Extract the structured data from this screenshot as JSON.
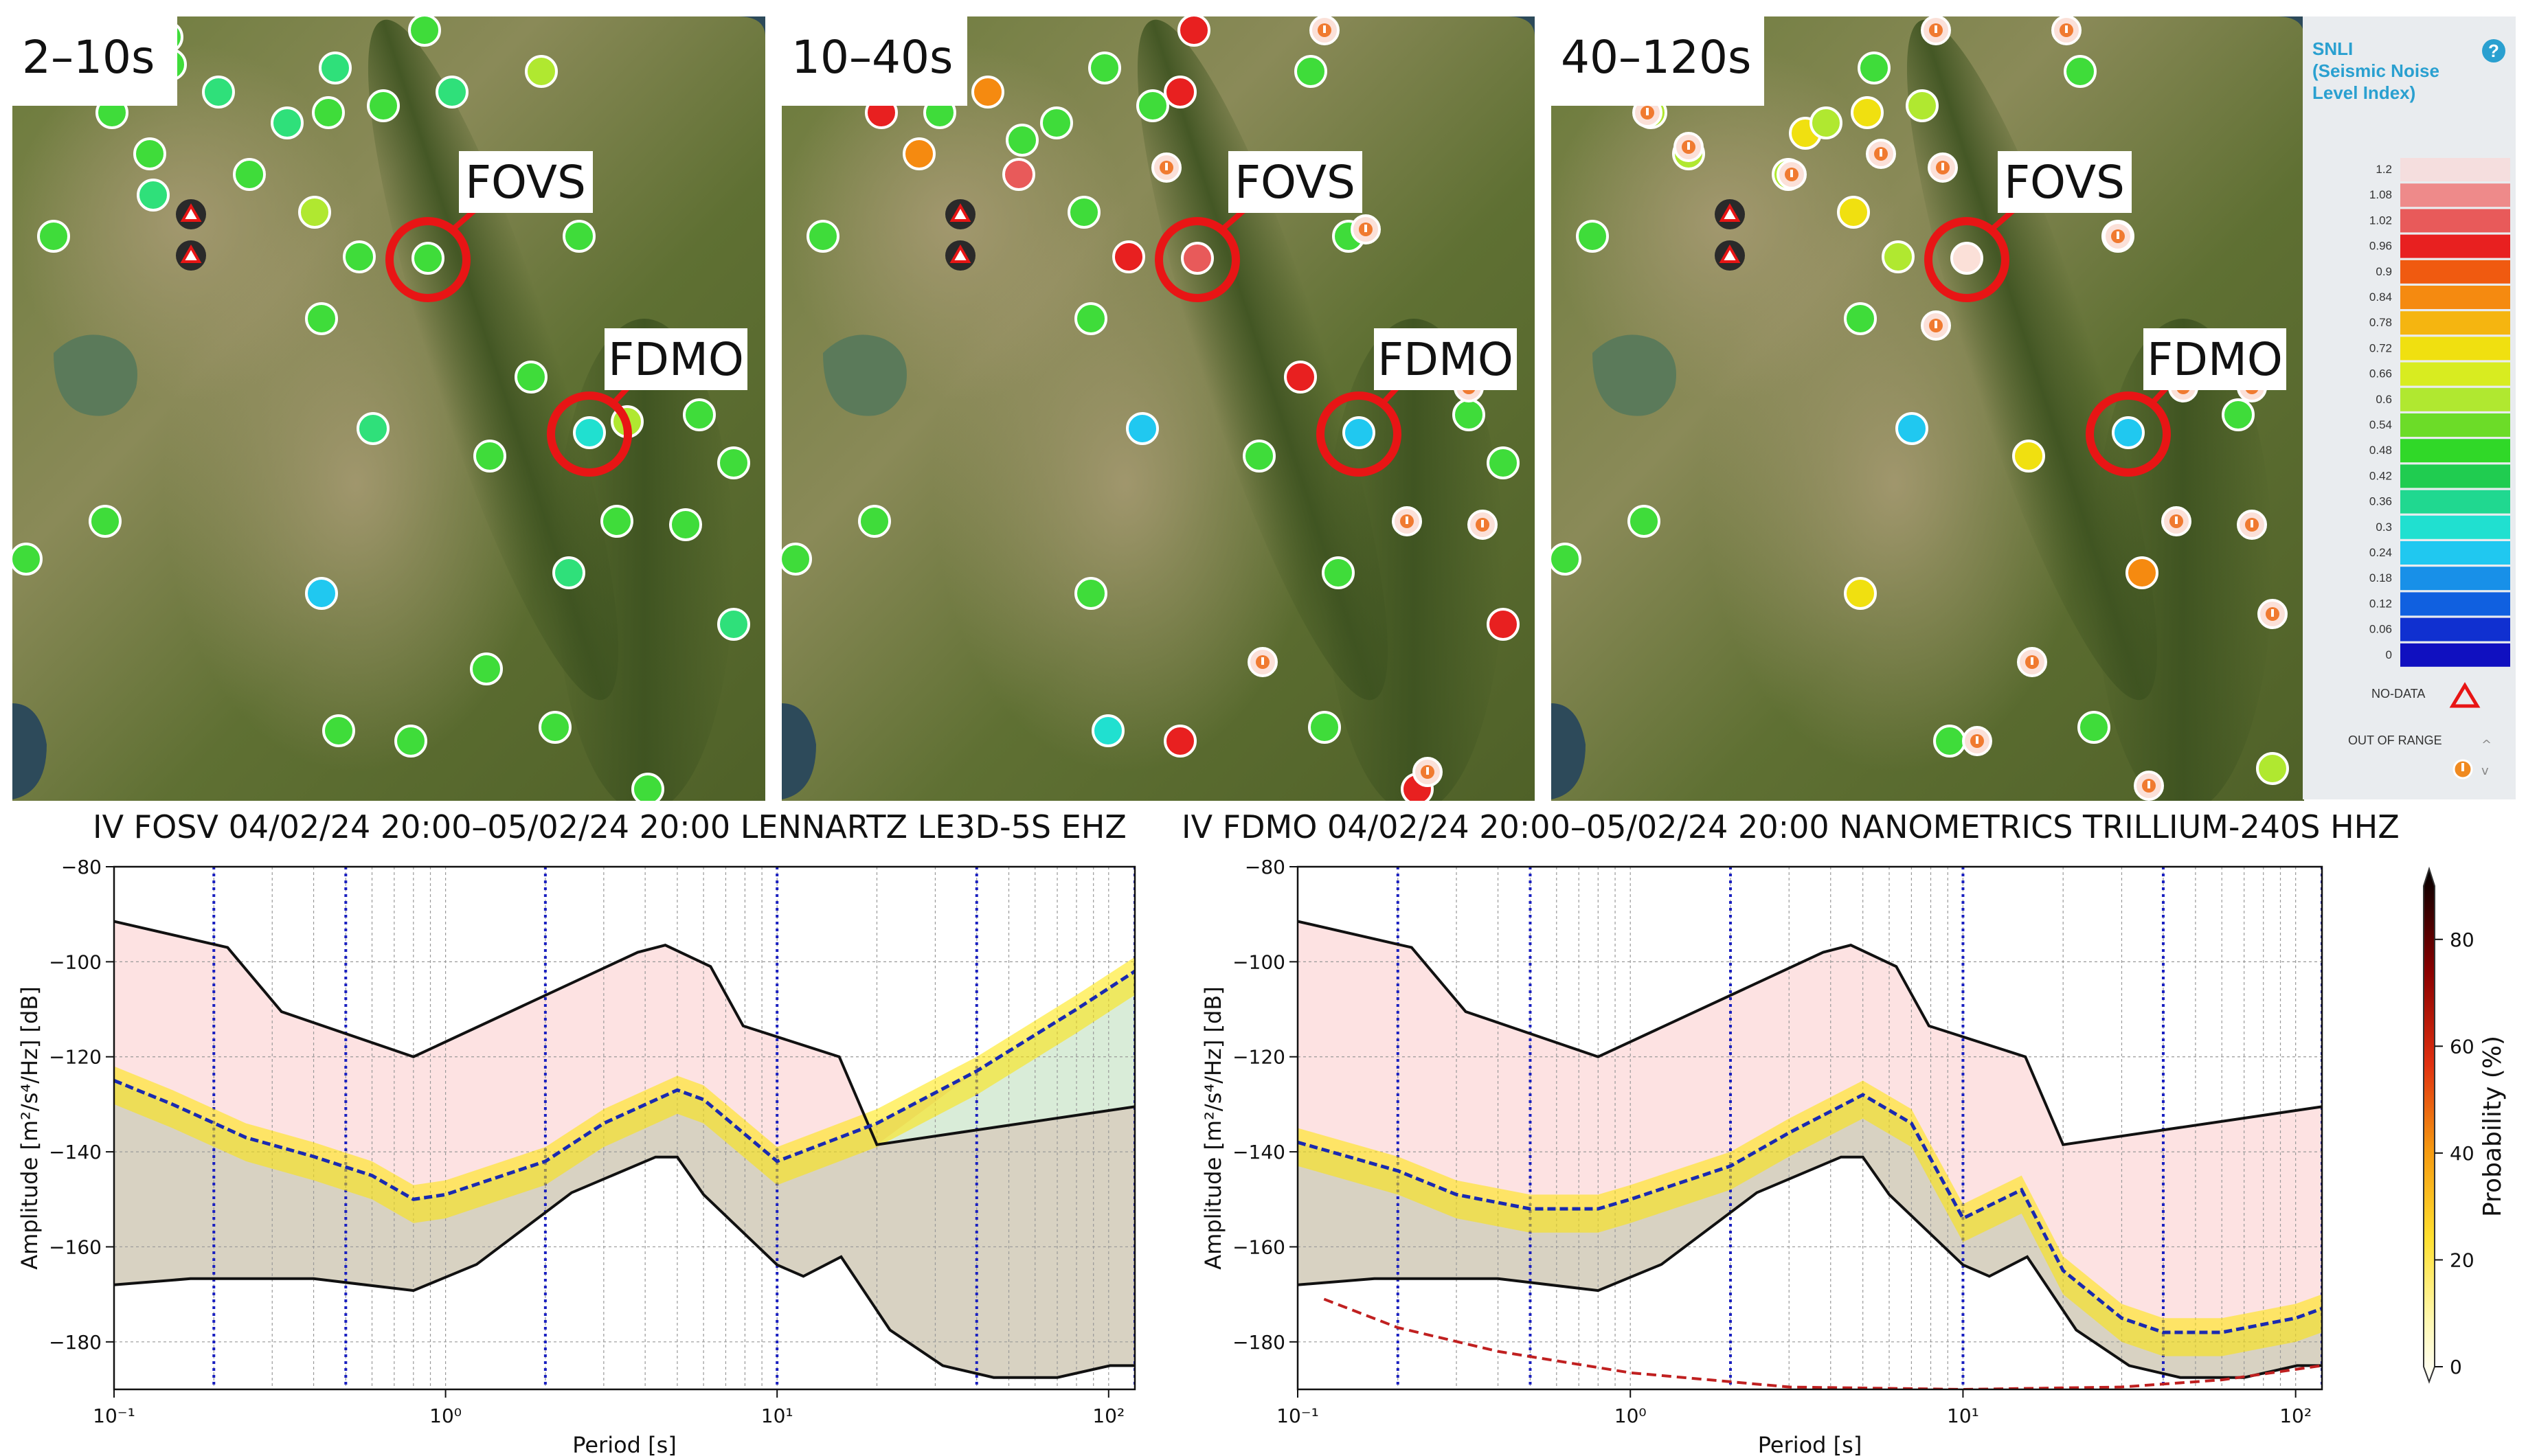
{
  "maps": [
    {
      "band": "2–10s",
      "markers": [
        "FOVS",
        "FDMO"
      ]
    },
    {
      "band": "10–40s",
      "markers": [
        "FOVS",
        "FDMO"
      ]
    },
    {
      "band": "40–120s",
      "markers": [
        "FOVS",
        "FDMO"
      ]
    }
  ],
  "legend": {
    "title_lines": [
      "SNLI",
      "(Seismic Noise",
      "Level Index)"
    ],
    "help": "?",
    "scale_values": [
      "1.2",
      "1.08",
      "1.02",
      "0.96",
      "0.9",
      "0.84",
      "0.78",
      "0.72",
      "0.66",
      "0.6",
      "0.54",
      "0.48",
      "0.42",
      "0.36",
      "0.3",
      "0.24",
      "0.18",
      "0.12",
      "0.06",
      "0"
    ],
    "scale_colors": [
      "#f5dede",
      "#ee8a8a",
      "#e85a5a",
      "#e82020",
      "#f05a10",
      "#f58a10",
      "#f5b510",
      "#f0e010",
      "#d8ec20",
      "#b0e830",
      "#6cdc28",
      "#30d828",
      "#20cc50",
      "#20d890",
      "#20e0d0",
      "#20c8f0",
      "#1890e8",
      "#1060e0",
      "#1030d0",
      "#1010c0"
    ],
    "no_data": "NO-DATA",
    "out_of_range": "OUT OF RANGE"
  },
  "colors": {
    "ring": "#e81515",
    "psd_fill": "#fde2e2",
    "noise_fill": "#d8d2c2",
    "green_fill": "#d9ecd8",
    "median": "#1a2ab0",
    "dashed_red": "#c02020"
  },
  "colorbar": {
    "label": "Probability (%)",
    "ticks": [
      "80",
      "60",
      "40",
      "20",
      "0"
    ]
  },
  "chart_data": [
    {
      "type": "line",
      "title": "IV FOSV  04/02/24 20:00–05/02/24 20:00 LENNARTZ LE3D-5S EHZ",
      "xlabel": "Period [s]",
      "ylabel": "Amplitude [m²/s⁴/Hz] [dB]",
      "xscale": "log",
      "xlim": [
        0.1,
        120
      ],
      "ylim": [
        -190,
        -80
      ],
      "yticks": [
        "−80",
        "−100",
        "−120",
        "−140",
        "−160",
        "−180"
      ],
      "xticks": [
        "10⁻¹",
        "10⁰",
        "10¹",
        "10²"
      ],
      "vertical_lines": [
        0.2,
        0.5,
        2,
        10,
        40,
        120
      ],
      "series": [
        {
          "name": "NHNM",
          "x": [
            0.1,
            0.22,
            0.32,
            0.8,
            3.8,
            4.6,
            6.3,
            7.9,
            15.4,
            20,
            120
          ],
          "y": [
            -91.5,
            -97,
            -110.5,
            -120,
            -98,
            -96.5,
            -101,
            -113.5,
            -120,
            -138.5,
            -130.5
          ]
        },
        {
          "name": "NLNM",
          "x": [
            0.1,
            0.17,
            0.4,
            0.8,
            1.24,
            2.4,
            4.3,
            5,
            6,
            10,
            12,
            15.6,
            21.9,
            31.6,
            45,
            70,
            101,
            120
          ],
          "y": [
            -168,
            -166.7,
            -166.7,
            -169.2,
            -163.7,
            -148.6,
            -141.1,
            -141.1,
            -149,
            -163.8,
            -166.2,
            -162.1,
            -177.5,
            -185,
            -187.5,
            -187.5,
            -185,
            -185
          ]
        },
        {
          "name": "Median",
          "x": [
            0.1,
            0.15,
            0.25,
            0.4,
            0.6,
            0.8,
            1,
            2,
            3,
            5,
            6,
            10,
            20,
            40,
            80,
            120
          ],
          "y": [
            -125,
            -130,
            -137,
            -141,
            -145,
            -150,
            -149,
            -142,
            -134,
            -127,
            -129,
            -142,
            -134,
            -123,
            -110,
            -102
          ]
        }
      ]
    },
    {
      "type": "line",
      "title": "IV FDMO  04/02/24 20:00–05/02/24 20:00 NANOMETRICS TRILLIUM-240S HHZ",
      "xlabel": "Period [s]",
      "ylabel": "Amplitude [m²/s⁴/Hz] [dB]",
      "xscale": "log",
      "xlim": [
        0.1,
        120
      ],
      "ylim": [
        -190,
        -80
      ],
      "yticks": [
        "−80",
        "−100",
        "−120",
        "−140",
        "−160",
        "−180"
      ],
      "xticks": [
        "10⁻¹",
        "10⁰",
        "10¹",
        "10²"
      ],
      "vertical_lines": [
        0.2,
        0.5,
        2,
        10,
        40,
        120
      ],
      "series": [
        {
          "name": "NHNM",
          "x": [
            0.1,
            0.22,
            0.32,
            0.8,
            3.8,
            4.6,
            6.3,
            7.9,
            15.4,
            20,
            120
          ],
          "y": [
            -91.5,
            -97,
            -110.5,
            -120,
            -98,
            -96.5,
            -101,
            -113.5,
            -120,
            -138.5,
            -130.5
          ]
        },
        {
          "name": "NLNM",
          "x": [
            0.1,
            0.17,
            0.4,
            0.8,
            1.24,
            2.4,
            4.3,
            5,
            6,
            10,
            12,
            15.6,
            21.9,
            31.6,
            45,
            70,
            101,
            120
          ],
          "y": [
            -168,
            -166.7,
            -166.7,
            -169.2,
            -163.7,
            -148.6,
            -141.1,
            -141.1,
            -149,
            -163.8,
            -166.2,
            -162.1,
            -177.5,
            -185,
            -187.5,
            -187.5,
            -185,
            -185
          ]
        },
        {
          "name": "Median",
          "x": [
            0.1,
            0.2,
            0.3,
            0.5,
            0.8,
            1,
            2,
            3,
            5,
            7,
            10,
            15,
            20,
            30,
            40,
            60,
            100,
            120
          ],
          "y": [
            -138,
            -144,
            -149,
            -152,
            -152,
            -150,
            -143,
            -136,
            -128,
            -134,
            -154,
            -148,
            -165,
            -175,
            -178,
            -178,
            -175,
            -173
          ]
        },
        {
          "name": "Instrument noise",
          "x": [
            0.12,
            0.2,
            0.4,
            1,
            3,
            10,
            30,
            60,
            120
          ],
          "y": [
            -171,
            -177,
            -182,
            -186.5,
            -189.5,
            -190,
            -189.5,
            -188,
            -185
          ]
        }
      ]
    }
  ]
}
